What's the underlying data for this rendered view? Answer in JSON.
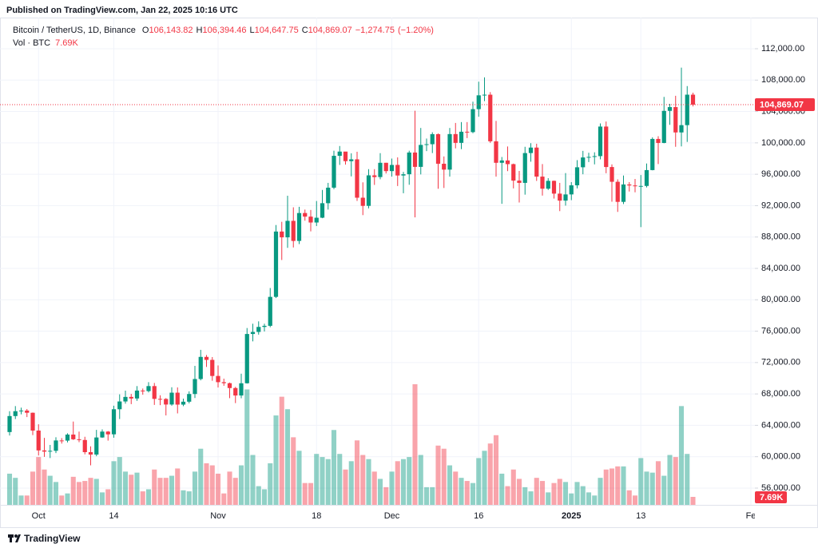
{
  "chart_data": {
    "type": "candlestick",
    "publisher": "Published on TradingView.com, Jan 22, 2025 10:16 UTC",
    "brand": "TradingView",
    "legend": {
      "symbol": "Bitcoin / TetherUS, 1D, Binance",
      "fields": [
        {
          "key": "O",
          "value": 106143.82,
          "label": "106,143.82"
        },
        {
          "key": "H",
          "value": 106394.46,
          "label": "106,394.46"
        },
        {
          "key": "L",
          "value": 104647.75,
          "label": "104,647.75"
        },
        {
          "key": "C",
          "value": 104869.07,
          "label": "104,869.07"
        }
      ],
      "change": {
        "value": -1274.75,
        "label": "−1,274.75"
      },
      "change_pct": {
        "value": -1.2,
        "label": "(−1.20%)"
      }
    },
    "volume_legend": {
      "title": "Vol · BTC",
      "value": 7690,
      "label": "7.69K"
    },
    "last_price": {
      "value": 104869.07,
      "label": "104,869.07"
    },
    "up_color": "#089981",
    "down_color": "#f23645",
    "grid": true,
    "xlim": [
      -1.655,
      128.69
    ],
    "xticks": [
      {
        "value": 5,
        "label": "Oct"
      },
      {
        "value": 18,
        "label": "14"
      },
      {
        "value": 36,
        "label": "Nov"
      },
      {
        "value": 53,
        "label": "18"
      },
      {
        "value": 66,
        "label": "Dec"
      },
      {
        "value": 81,
        "label": "16"
      },
      {
        "value": 97,
        "label": "2025",
        "bold": true
      },
      {
        "value": 109,
        "label": "13"
      },
      {
        "value": 128,
        "label": "Fe"
      }
    ],
    "ylim": [
      53860,
      115970
    ],
    "yticks": [
      {
        "value": 56000,
        "label": "56,000.00"
      },
      {
        "value": 60000,
        "label": "60,000.00"
      },
      {
        "value": 64000,
        "label": "64,000.00"
      },
      {
        "value": 68000,
        "label": "68,000.00"
      },
      {
        "value": 72000,
        "label": "72,000.00"
      },
      {
        "value": 76000,
        "label": "76,000.00"
      },
      {
        "value": 80000,
        "label": "80,000.00"
      },
      {
        "value": 84000,
        "label": "84,000.00"
      },
      {
        "value": 88000,
        "label": "88,000.00"
      },
      {
        "value": 92000,
        "label": "92,000.00"
      },
      {
        "value": 96000,
        "label": "96,000.00"
      },
      {
        "value": 100000,
        "label": "100,000.00"
      },
      {
        "value": 104000,
        "label": "104,000.00"
      },
      {
        "value": 108000,
        "label": "108,000.00"
      },
      {
        "value": 112000,
        "label": "112,000.00"
      }
    ],
    "open": [
      63140,
      65180,
      65800,
      65880,
      65600,
      63330,
      60800,
      60650,
      60750,
      62070,
      62050,
      62820,
      62220,
      62130,
      60580,
      60270,
      62450,
      63200,
      62850,
      66050,
      67040,
      67620,
      67420,
      68430,
      68360,
      69000,
      67370,
      67360,
      66650,
      68160,
      66640,
      67010,
      67990,
      69900,
      72720,
      72340,
      70290,
      69500,
      69370,
      68750,
      67800,
      69360,
      75640,
      75900,
      76540,
      76680,
      80370,
      88700,
      87960,
      90060,
      87500,
      91060,
      90600,
      89850,
      90460,
      92310,
      94290,
      98350,
      98890,
      97670,
      97900,
      93010,
      91970,
      95860,
      95640,
      97460,
      96400,
      97190,
      95840,
      96000,
      98770,
      96940,
      99740,
      99830,
      101110,
      97340,
      96590,
      101120,
      100000,
      101420,
      101370,
      104300,
      106060,
      106140,
      100200,
      97460,
      97760,
      97290,
      95190,
      94900,
      98700,
      99400,
      95700,
      94160,
      95160,
      93530,
      92640,
      93430,
      94590,
      96890,
      98140,
      98210,
      98310,
      102080,
      96920,
      95040,
      92480,
      94700,
      94570,
      94500,
      94510,
      96530,
      100500,
      99990,
      104080,
      104560,
      101330,
      102260,
      106143.82
    ],
    "high": [
      65800,
      66450,
      66250,
      66080,
      65630,
      64130,
      62400,
      61500,
      62480,
      62370,
      62980,
      64480,
      63200,
      62540,
      61320,
      63420,
      63480,
      63270,
      66500,
      67950,
      68420,
      68000,
      69000,
      68690,
      69500,
      69400,
      67830,
      67470,
      68850,
      68830,
      67400,
      68330,
      71580,
      73620,
      72960,
      72700,
      71630,
      69950,
      69450,
      68900,
      70580,
      76400,
      76950,
      77250,
      76950,
      81500,
      89530,
      89940,
      93260,
      91790,
      91850,
      91500,
      91450,
      92590,
      94000,
      94900,
      99000,
      99600,
      98700,
      98670,
      98870,
      94970,
      96650,
      96650,
      98690,
      97460,
      98000,
      98150,
      96300,
      99000,
      104090,
      101900,
      100550,
      101350,
      101200,
      98270,
      101900,
      102540,
      102650,
      102650,
      105250,
      107800,
      108350,
      106470,
      102800,
      98200,
      99540,
      97360,
      96420,
      99500,
      99960,
      99890,
      97300,
      95500,
      95200,
      94900,
      96150,
      95000,
      97800,
      98980,
      98740,
      98800,
      102480,
      102720,
      97260,
      95350,
      95840,
      95000,
      95400,
      95900,
      97370,
      100700,
      100850,
      105860,
      104970,
      106000,
      109590,
      107240,
      106394.46
    ],
    "low": [
      62700,
      64800,
      65400,
      65050,
      62750,
      60160,
      59980,
      59830,
      60460,
      61670,
      61820,
      62130,
      61850,
      60300,
      58900,
      60060,
      62400,
      62050,
      62420,
      64800,
      66760,
      66700,
      67120,
      67900,
      68190,
      66600,
      66570,
      65260,
      66500,
      65520,
      66440,
      66800,
      67480,
      69730,
      71440,
      69680,
      68820,
      69040,
      67460,
      66830,
      67450,
      69320,
      74700,
      75560,
      75960,
      76500,
      80220,
      85070,
      86620,
      86670,
      87100,
      90080,
      88720,
      89400,
      90400,
      91500,
      94100,
      97190,
      97230,
      95730,
      92600,
      90790,
      91650,
      94640,
      95360,
      96100,
      95700,
      94500,
      93580,
      94660,
      90500,
      95980,
      98950,
      98700,
      94150,
      94250,
      95700,
      99300,
      99200,
      100610,
      101230,
      103330,
      105320,
      100000,
      95700,
      92230,
      96400,
      94200,
      92400,
      93400,
      97600,
      95150,
      93280,
      94000,
      92900,
      91300,
      92000,
      92700,
      94200,
      96000,
      97550,
      97260,
      97900,
      96130,
      92500,
      91200,
      92200,
      93800,
      93700,
      89260,
      94320,
      96500,
      97300,
      99950,
      102300,
      99500,
      99550,
      100120,
      104647.75
    ],
    "close": [
      65180,
      65800,
      65880,
      65600,
      63330,
      60800,
      60650,
      60750,
      62070,
      62050,
      62820,
      62220,
      62130,
      60580,
      60270,
      62450,
      63200,
      62850,
      66050,
      67040,
      67620,
      67420,
      68430,
      68360,
      69000,
      67370,
      67360,
      66650,
      68160,
      66640,
      67010,
      67990,
      69900,
      72720,
      72340,
      70290,
      69500,
      69370,
      68750,
      67800,
      69360,
      75640,
      75900,
      76540,
      76680,
      80370,
      88700,
      87960,
      90060,
      87500,
      91060,
      90600,
      89850,
      90460,
      92310,
      94290,
      98350,
      98890,
      97670,
      97900,
      93010,
      91970,
      95860,
      95640,
      97460,
      96400,
      97190,
      95840,
      96000,
      98770,
      96940,
      99740,
      99830,
      101110,
      97340,
      96590,
      101120,
      100000,
      101420,
      101370,
      104300,
      106060,
      106140,
      100200,
      97460,
      97760,
      97290,
      95190,
      94900,
      98700,
      99400,
      95700,
      94160,
      95160,
      93530,
      92640,
      93430,
      94590,
      96890,
      98140,
      98210,
      98310,
      102080,
      96920,
      95040,
      92480,
      94700,
      94570,
      94500,
      94510,
      96530,
      100500,
      99990,
      104080,
      104560,
      101330,
      102260,
      106143.82,
      104869.07
    ],
    "volume": [
      30000,
      26000,
      9000,
      9000,
      32000,
      46000,
      34000,
      28000,
      22000,
      9000,
      11000,
      27000,
      22000,
      23000,
      26000,
      25000,
      12000,
      15000,
      42000,
      46000,
      32000,
      29000,
      31000,
      13000,
      15000,
      34000,
      26000,
      26000,
      28000,
      35000,
      14000,
      13000,
      32000,
      54000,
      40000,
      38000,
      30000,
      11000,
      32000,
      26000,
      38000,
      111000,
      48000,
      18000,
      15000,
      40000,
      86000,
      104000,
      92000,
      65000,
      52000,
      21000,
      21000,
      49000,
      46000,
      44000,
      72000,
      49000,
      34000,
      42000,
      62000,
      48000,
      44000,
      32000,
      25000,
      17000,
      32000,
      42000,
      44000,
      46000,
      116000,
      48000,
      17000,
      17000,
      57000,
      54000,
      38000,
      32000,
      26000,
      23000,
      21000,
      45000,
      52000,
      59000,
      67000,
      30000,
      18000,
      34000,
      25000,
      17000,
      13000,
      26000,
      23000,
      12000,
      21000,
      25000,
      22000,
      11000,
      22000,
      18000,
      12000,
      9000,
      26000,
      34000,
      35000,
      37000,
      37000,
      14000,
      9000,
      45000,
      32000,
      31000,
      42000,
      28000,
      48000,
      46000,
      95000,
      49000,
      7690
    ]
  }
}
